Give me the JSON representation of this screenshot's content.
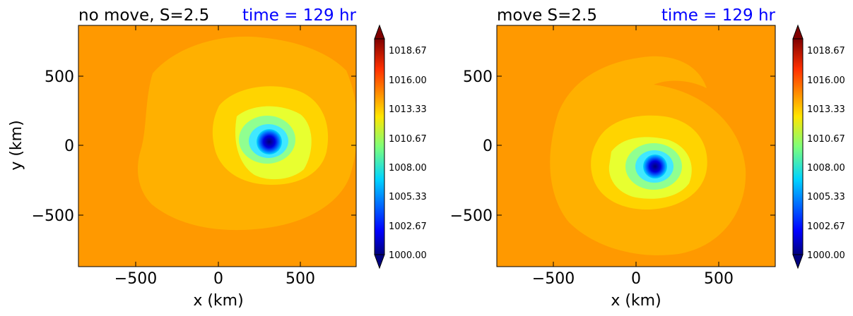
{
  "chart_data": [
    {
      "type": "heatmap",
      "title": "no move, S=2.5",
      "time_label": "time = 129 hr",
      "xlabel": "x (km)",
      "ylabel": "y (km)",
      "xlim": [
        -850,
        850
      ],
      "ylim": [
        -850,
        850
      ],
      "xticks": [
        "−500",
        "0",
        "500"
      ],
      "xtick_values": [
        -500,
        0,
        500
      ],
      "yticks": [
        "500",
        "0",
        "−500"
      ],
      "ytick_values": [
        500,
        0,
        -500
      ],
      "vortex_center": [
        320,
        30
      ],
      "colorbar": {
        "min": 1000,
        "max": 1020,
        "levels": 30,
        "extend": "both",
        "tick_values": [
          1000,
          1002.67,
          1005.33,
          1008,
          1010.67,
          1013.33,
          1016,
          1018.67
        ],
        "tick_labels": [
          "1000.00",
          "1002.67",
          "1005.33",
          "1008.00",
          "1010.67",
          "1013.33",
          "1016.00",
          "1018.67"
        ]
      }
    },
    {
      "type": "heatmap",
      "title": "move S=2.5",
      "time_label": "time = 129 hr",
      "xlabel": "x (km)",
      "ylabel": "",
      "xlim": [
        -850,
        850
      ],
      "ylim": [
        -850,
        850
      ],
      "xticks": [
        "−500",
        "0",
        "500"
      ],
      "xtick_values": [
        -500,
        0,
        500
      ],
      "yticks": [
        "500",
        "0",
        "−500"
      ],
      "ytick_values": [
        500,
        0,
        -500
      ],
      "vortex_center": [
        120,
        -145
      ],
      "colorbar": {
        "min": 1000,
        "max": 1020,
        "levels": 30,
        "extend": "both",
        "tick_values": [
          1000,
          1002.67,
          1005.33,
          1008,
          1010.67,
          1013.33,
          1016,
          1018.67
        ],
        "tick_labels": [
          "1000.00",
          "1002.67",
          "1005.33",
          "1008.00",
          "1010.67",
          "1013.33",
          "1016.00",
          "1018.67"
        ]
      }
    }
  ],
  "colors": {
    "title": "#000000",
    "time_label": "#0000ff",
    "background_field": "#ff9900",
    "outer_band": "#ffb000",
    "inner_band": "#ffd400",
    "eye": "#00008c"
  }
}
